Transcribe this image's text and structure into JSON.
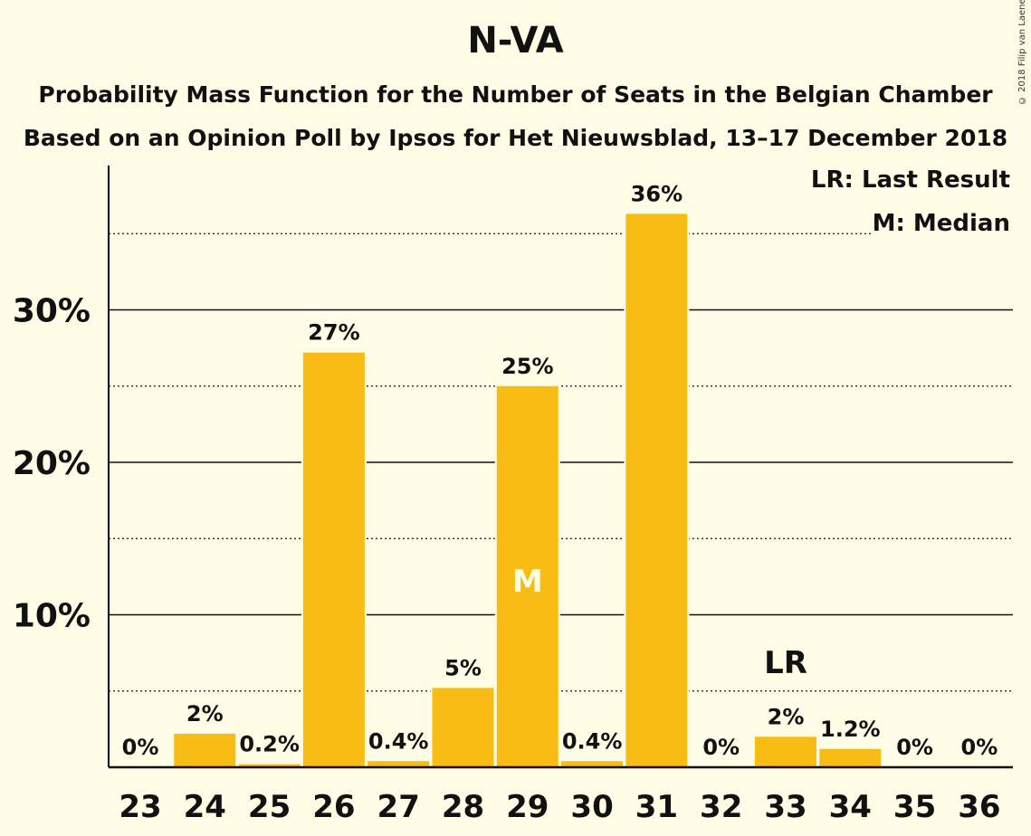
{
  "title": "N-VA",
  "subtitle": "Probability Mass Function for the Number of Seats in the Belgian Chamber",
  "subtitle2": "Based on an Opinion Poll by Ipsos for Het Nieuwsblad, 13–17 December 2018",
  "copyright": "© 2018 Filip van Laenen",
  "legend": {
    "last_result": "LR: Last Result",
    "median": "M: Median"
  },
  "colors": {
    "bar": "#f9bc15",
    "background": "#fffde6",
    "median_label": "#fffde6"
  },
  "chart_data": {
    "type": "bar",
    "categories": [
      "23",
      "24",
      "25",
      "26",
      "27",
      "28",
      "29",
      "30",
      "31",
      "32",
      "33",
      "34",
      "35",
      "36"
    ],
    "values": [
      0,
      2.2,
      0.2,
      27.2,
      0.4,
      5.2,
      25.0,
      0.4,
      36.3,
      0,
      2.0,
      1.2,
      0,
      0
    ],
    "labels": [
      "0%",
      "2%",
      "0.2%",
      "27%",
      "0.4%",
      "5%",
      "25%",
      "0.4%",
      "36%",
      "0%",
      "2%",
      "1.2%",
      "0%",
      "0%"
    ],
    "yticks": [
      10,
      20,
      30
    ],
    "ytick_labels": [
      "10%",
      "20%",
      "30%"
    ],
    "minor_gridlines": [
      5,
      15,
      25,
      35
    ],
    "ylim": [
      0,
      39.3
    ],
    "median": {
      "category": "29",
      "label": "M"
    },
    "last_result": {
      "category": "33",
      "label": "LR"
    },
    "grid": true,
    "legend_position": "top-right"
  }
}
